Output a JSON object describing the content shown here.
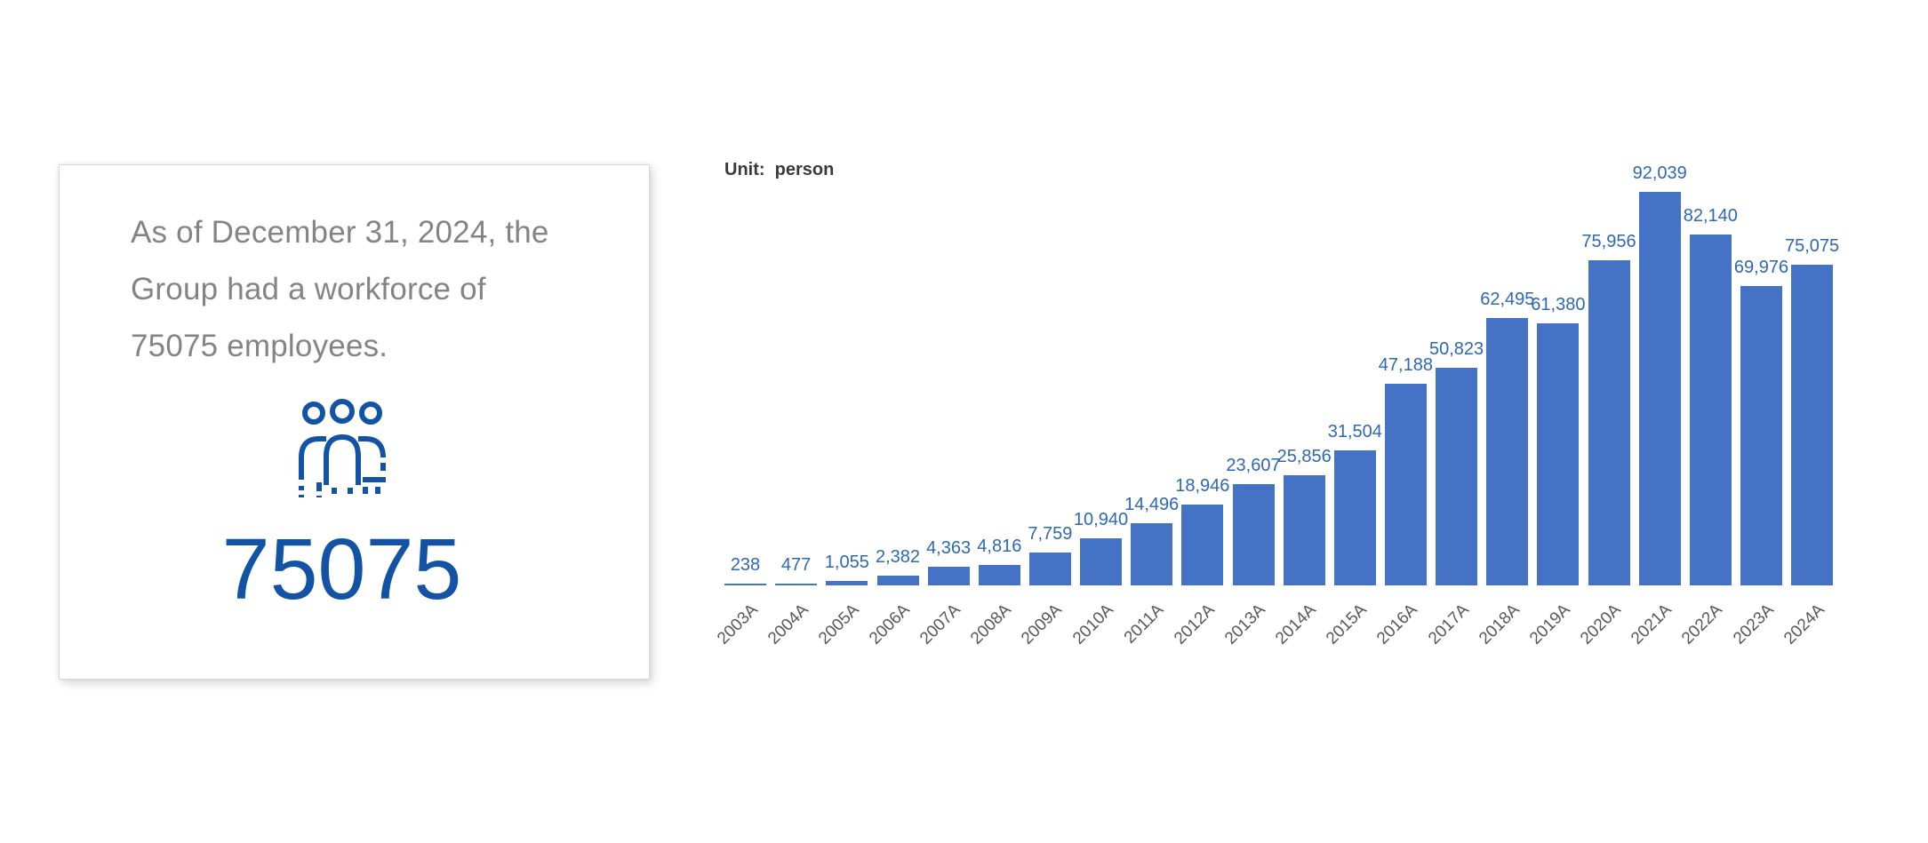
{
  "card": {
    "lines": [
      "As of December 31, 2024, the",
      "Group had a workforce of",
      "75075 employees."
    ],
    "total": "75075",
    "icon": "people-group-icon",
    "accent_color": "#1353A5"
  },
  "chart": {
    "unit_label": "Unit:  person"
  },
  "chart_data": {
    "type": "bar",
    "title": "",
    "unit": "person",
    "categories": [
      "2003A",
      "2004A",
      "2005A",
      "2006A",
      "2007A",
      "2008A",
      "2009A",
      "2010A",
      "2011A",
      "2012A",
      "2013A",
      "2014A",
      "2015A",
      "2016A",
      "2017A",
      "2018A",
      "2019A",
      "2020A",
      "2021A",
      "2022A",
      "2023A",
      "2024A"
    ],
    "values": [
      238,
      477,
      1055,
      2382,
      4363,
      4816,
      7759,
      10940,
      14496,
      18946,
      23607,
      25856,
      31504,
      47188,
      50823,
      62495,
      61380,
      75956,
      92039,
      82140,
      69976,
      75075
    ],
    "data_label_format": "#,###",
    "bar_color": "#4472C4",
    "label_color": "#2E68B4",
    "axis_label_color": "#595959",
    "ylim": [
      0,
      95000
    ],
    "grid": false,
    "legend": false,
    "data_labels": true,
    "x_label_rotation": -45
  }
}
